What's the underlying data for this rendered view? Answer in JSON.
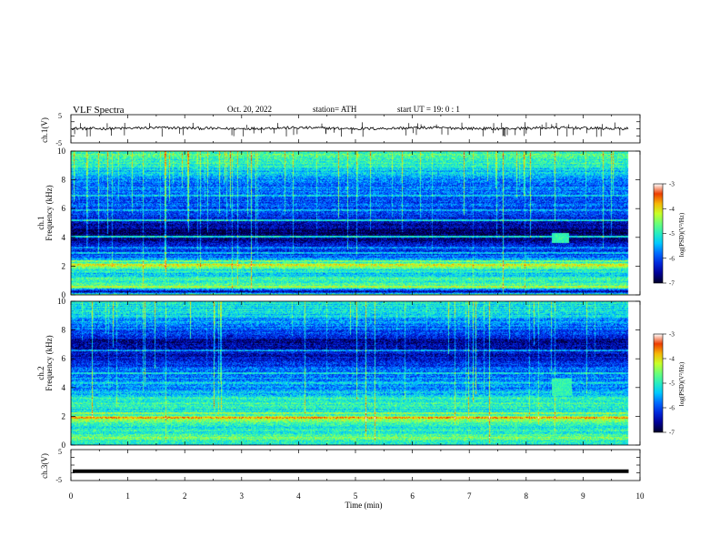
{
  "header": {
    "title": "VLF  Spectra",
    "date": "Oct. 20, 2022",
    "station": "station= ATH",
    "start_time": "start  UT  =    19: 0  : 1"
  },
  "chart_data": [
    {
      "type": "line",
      "panel": "ch1-waveform",
      "ylabel": "ch.1(V)",
      "ylim": [
        -5,
        5
      ],
      "yticks": [
        5,
        -5
      ],
      "x_range": [
        0,
        9.8
      ],
      "trace_center_v": 0.2,
      "trace_noise_v": 0.5,
      "spikes_v": 2.2,
      "color": "#000000"
    },
    {
      "type": "heatmap",
      "panel": "ch1-spectrogram",
      "ylabel_lines": [
        "ch.1",
        "Frequency  (kHz)"
      ],
      "ylim": [
        0,
        10
      ],
      "yticks": [
        0,
        2,
        4,
        6,
        8,
        10
      ],
      "x_range": [
        0,
        9.8
      ],
      "colorbar": {
        "label": "log(PSD)(V²/Hz)",
        "range": [
          -7,
          -3
        ],
        "ticks": [
          -3,
          -4,
          -5,
          -6,
          -7
        ]
      },
      "profile_khz": [
        [
          0,
          -4.7
        ],
        [
          0.2,
          -6.6
        ],
        [
          0.5,
          -4.6
        ],
        [
          0.8,
          -5.0
        ],
        [
          1.1,
          -4.8
        ],
        [
          1.4,
          -5.4
        ],
        [
          1.7,
          -5.1
        ],
        [
          1.9,
          -4.5
        ],
        [
          2.05,
          -4.0
        ],
        [
          2.2,
          -4.9
        ],
        [
          2.5,
          -5.7
        ],
        [
          3.0,
          -6.1
        ],
        [
          3.5,
          -6.4
        ],
        [
          3.9,
          -6.6
        ],
        [
          4.3,
          -6.9
        ],
        [
          4.8,
          -6.5
        ],
        [
          5.3,
          -6.2
        ],
        [
          6.0,
          -6.0
        ],
        [
          7.0,
          -5.9
        ],
        [
          8.0,
          -5.6
        ],
        [
          8.8,
          -5.2
        ],
        [
          9.3,
          -4.9
        ],
        [
          10,
          -4.8
        ]
      ],
      "bands_khz": [
        [
          0.2,
          -7.0
        ],
        [
          0.55,
          -4.4
        ],
        [
          1.0,
          -4.9
        ],
        [
          1.55,
          -5.0
        ],
        [
          2.05,
          -3.9
        ],
        [
          2.3,
          -4.6
        ],
        [
          2.9,
          -5.5
        ],
        [
          3.3,
          -5.6
        ],
        [
          4.05,
          -5.1
        ],
        [
          5.2,
          -5.3
        ],
        [
          5.9,
          -5.5
        ],
        [
          6.9,
          -5.4
        ],
        [
          8.5,
          -5.5
        ]
      ],
      "patch": {
        "t": [
          8.45,
          8.75
        ],
        "khz": [
          3.6,
          4.3
        ],
        "value": -4.9
      }
    },
    {
      "type": "heatmap",
      "panel": "ch2-spectrogram",
      "ylabel_lines": [
        "ch.2",
        "Frequency  (kHz)"
      ],
      "ylim": [
        0,
        10
      ],
      "yticks": [
        0,
        2,
        4,
        6,
        8,
        10
      ],
      "x_range": [
        0,
        9.8
      ],
      "colorbar": {
        "label": "log(PSD)(V²/Hz)",
        "range": [
          -7,
          -3
        ],
        "ticks": [
          -3,
          -4,
          -5,
          -6,
          -7
        ]
      },
      "profile_khz": [
        [
          0,
          -5.2
        ],
        [
          0.3,
          -5.0
        ],
        [
          0.8,
          -4.9
        ],
        [
          1.3,
          -5.1
        ],
        [
          1.9,
          -4.3
        ],
        [
          2.2,
          -5.2
        ],
        [
          2.8,
          -5.0
        ],
        [
          3.4,
          -5.2
        ],
        [
          4.0,
          -5.7
        ],
        [
          4.6,
          -5.6
        ],
        [
          5.2,
          -5.8
        ],
        [
          6.0,
          -6.3
        ],
        [
          7.0,
          -6.6
        ],
        [
          7.8,
          -6.1
        ],
        [
          8.6,
          -5.6
        ],
        [
          9.3,
          -5.2
        ],
        [
          10,
          -5.1
        ]
      ],
      "bands_khz": [
        [
          0.15,
          -7.0
        ],
        [
          0.45,
          -4.5
        ],
        [
          1.0,
          -4.8
        ],
        [
          1.9,
          -3.8
        ],
        [
          2.2,
          -4.4
        ],
        [
          2.8,
          -4.9
        ],
        [
          3.3,
          -5.0
        ],
        [
          4.3,
          -5.2
        ],
        [
          5.0,
          -5.1
        ],
        [
          6.6,
          -5.6
        ]
      ],
      "patch": {
        "t": [
          8.45,
          8.8
        ],
        "khz": [
          3.4,
          4.6
        ],
        "value": -4.9
      }
    },
    {
      "type": "line",
      "panel": "ch3-waveform",
      "ylabel": "ch.3(V)",
      "ylim": [
        -5,
        5
      ],
      "yticks": [
        5,
        -5
      ],
      "x_range": [
        0,
        9.8
      ],
      "trace_value_v": -2.0,
      "color": "#000000"
    }
  ],
  "x_axis": {
    "label": "Time  (min)",
    "range": [
      0,
      10
    ],
    "ticks": [
      "0",
      "1",
      "2",
      "3",
      "4",
      "5",
      "6",
      "7",
      "8",
      "9",
      "10"
    ]
  }
}
